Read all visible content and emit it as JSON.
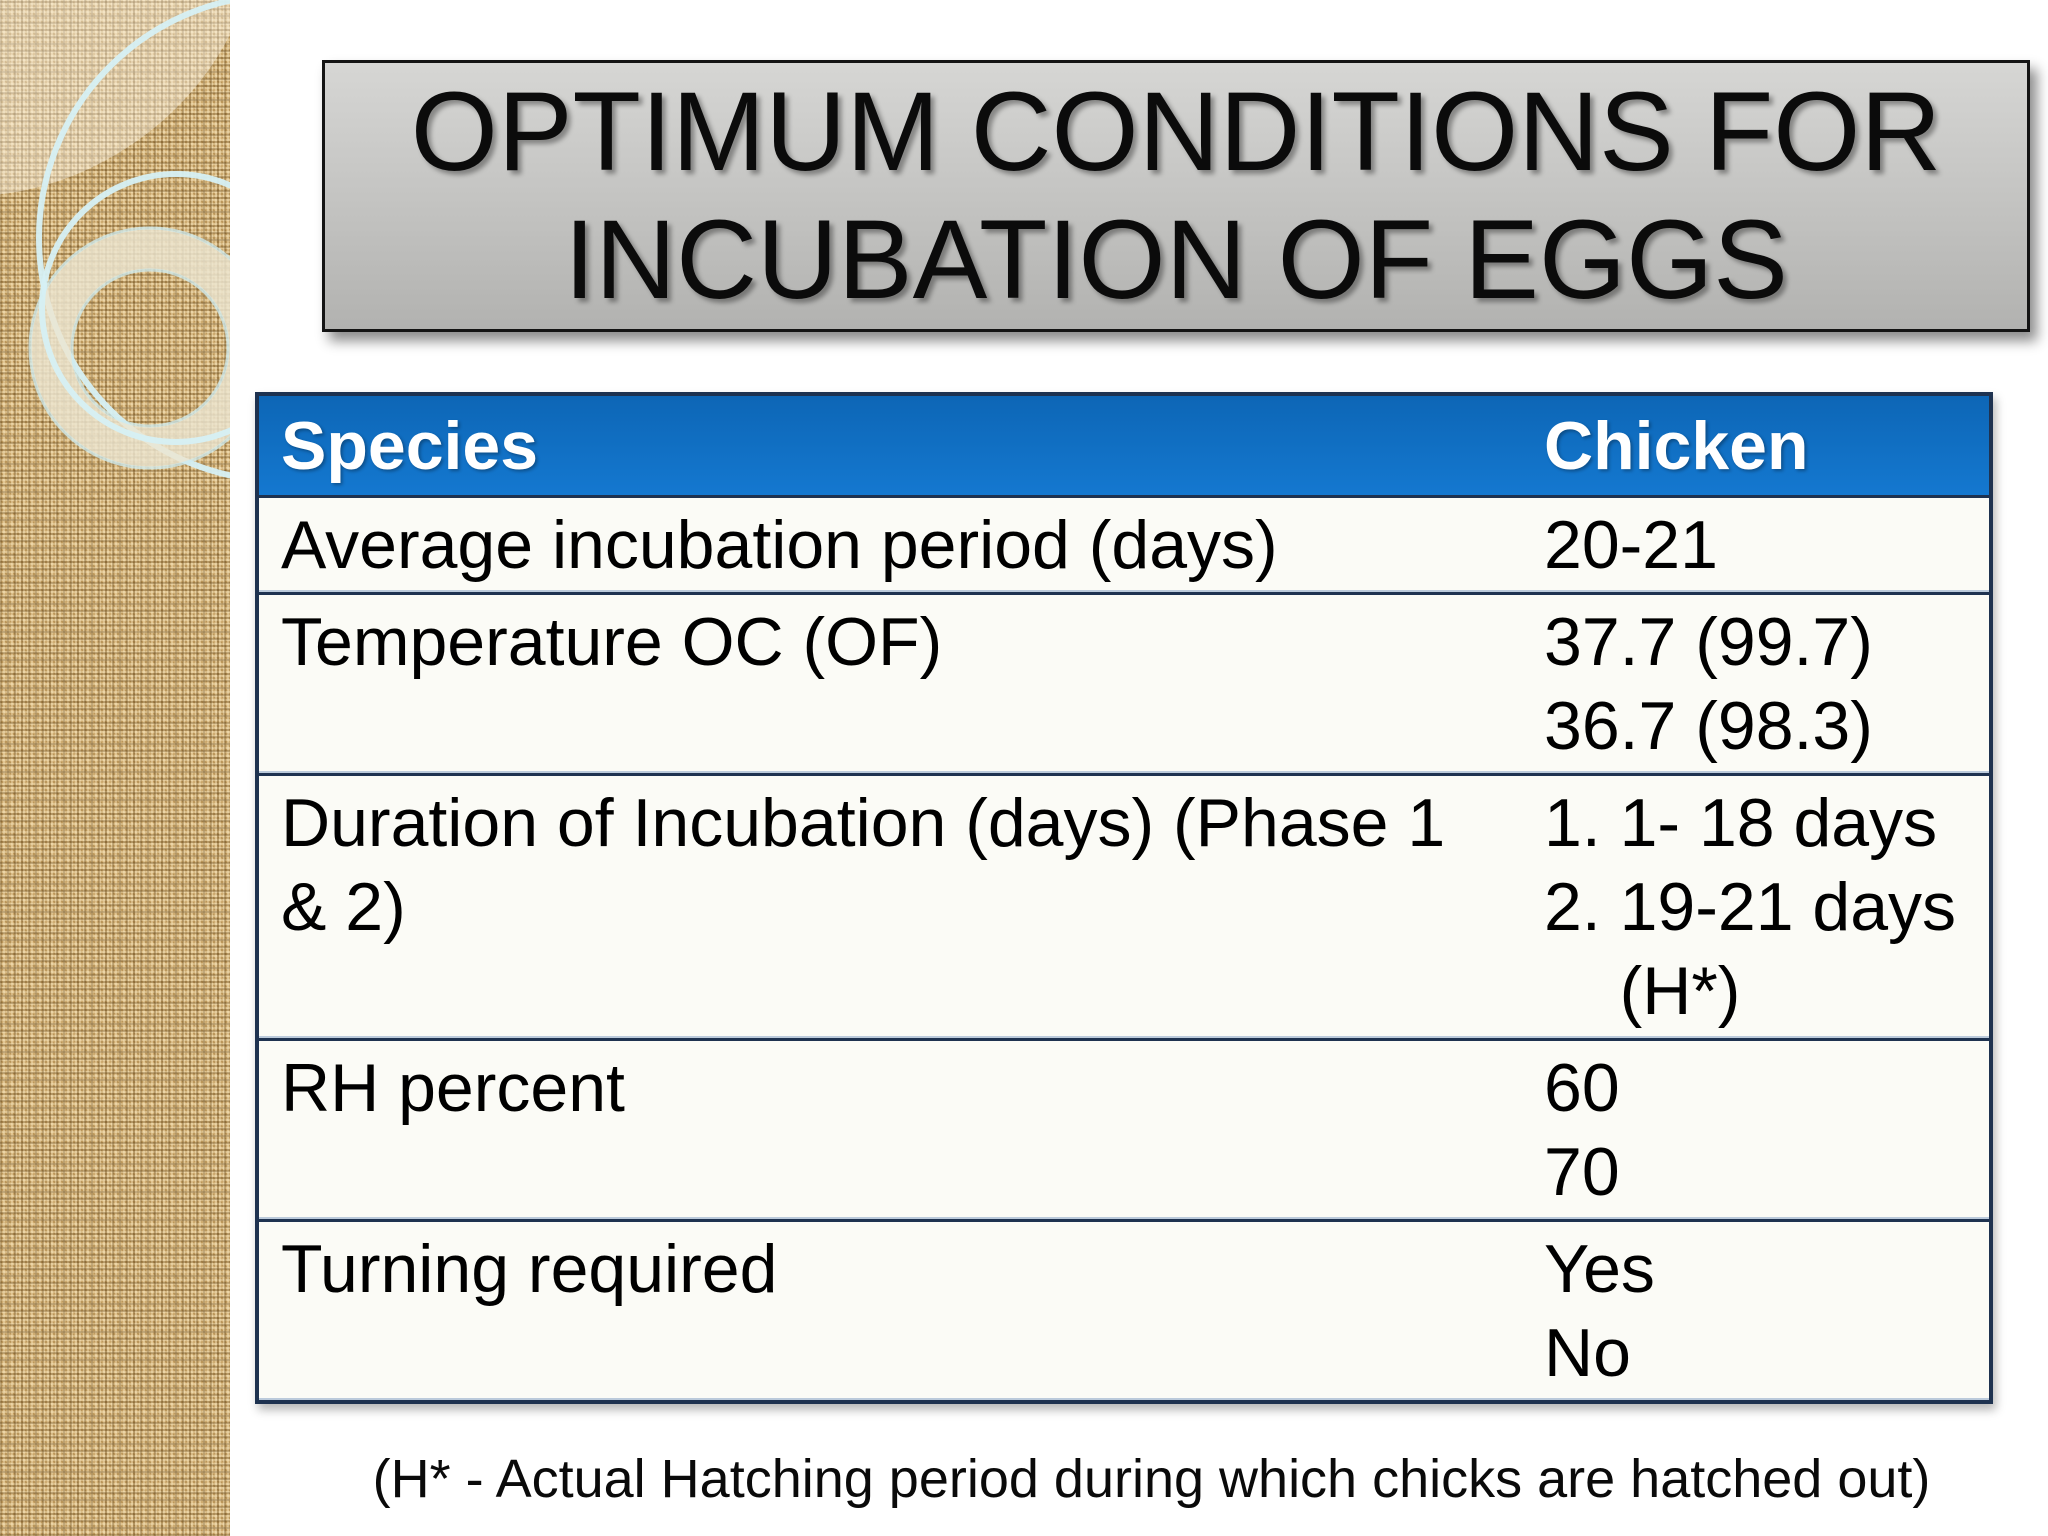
{
  "title": {
    "text": "OPTIMUM CONDITIONS FOR INCUBATION OF EGGS"
  },
  "table": {
    "header": {
      "label": "Species",
      "value": "Chicken"
    },
    "rows": [
      {
        "label": "Average incubation period (days)",
        "values": [
          "20-21"
        ]
      },
      {
        "label": "Temperature OC (OF)",
        "values": [
          "37.7 (99.7)",
          "36.7 (98.3)"
        ]
      },
      {
        "label": "Duration of Incubation (days) (Phase 1 & 2)",
        "values": [
          "1. 1- 18 days",
          "2. 19-21 days",
          "    (H*)"
        ]
      },
      {
        "label": "RH percent",
        "values": [
          "60",
          "70"
        ]
      },
      {
        "label": "Turning required",
        "values": [
          "Yes",
          "No"
        ]
      }
    ]
  },
  "footnote": {
    "text": "(H* - Actual Hatching period during which chicks are hatched out)"
  },
  "colors": {
    "header_bg": "#1170c4",
    "header_text": "#ffffff",
    "table_border": "#1e3250",
    "table_bg": "#fbfbf6",
    "texture_base": "#c7a264",
    "title_plate": "#c4c4c2",
    "ring_cyan": "#d6f0f4",
    "ring_cream": "#ece5d1"
  }
}
